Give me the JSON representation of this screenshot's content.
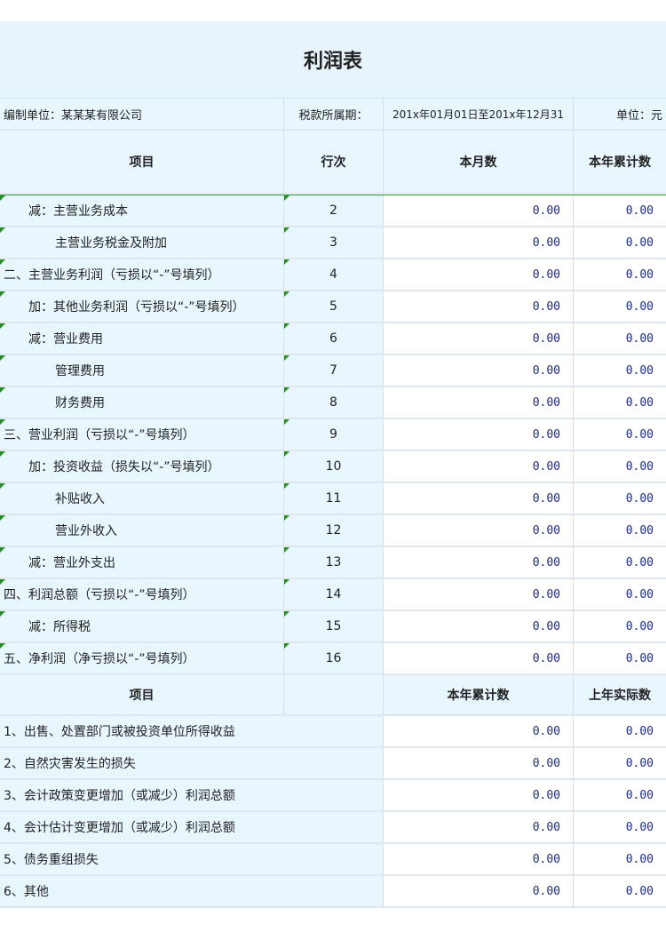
{
  "title": "利润表",
  "info": {
    "unit_label": "编制单位：某某某有限公司",
    "period_label": "税款所属期：",
    "period_value": "201x年01月01日至201x年12月31",
    "currency": "单位：元"
  },
  "header1": {
    "item": "项目",
    "line": "行次",
    "month": "本月数",
    "year": "本年累计数"
  },
  "rows": [
    {
      "item": "减：主营业务成本",
      "indent": 1,
      "line": "2",
      "month": "0.00",
      "year": "0.00"
    },
    {
      "item": "主营业务税金及附加",
      "indent": 2,
      "line": "3",
      "month": "0.00",
      "year": "0.00"
    },
    {
      "item": "二、主营业务利润（亏损以“-”号填列）",
      "indent": 0,
      "line": "4",
      "month": "0.00",
      "year": "0.00"
    },
    {
      "item": "加：其他业务利润（亏损以“-”号填列）",
      "indent": 1,
      "line": "5",
      "month": "0.00",
      "year": "0.00"
    },
    {
      "item": "减：营业费用",
      "indent": 1,
      "line": "6",
      "month": "0.00",
      "year": "0.00"
    },
    {
      "item": "管理费用",
      "indent": 2,
      "line": "7",
      "month": "0.00",
      "year": "0.00"
    },
    {
      "item": "财务费用",
      "indent": 2,
      "line": "8",
      "month": "0.00",
      "year": "0.00"
    },
    {
      "item": "三、营业利润（亏损以“-”号填列）",
      "indent": 0,
      "line": "9",
      "month": "0.00",
      "year": "0.00"
    },
    {
      "item": "加：投资收益（损失以“-”号填列）",
      "indent": 1,
      "line": "10",
      "month": "0.00",
      "year": "0.00"
    },
    {
      "item": "补贴收入",
      "indent": 2,
      "line": "11",
      "month": "0.00",
      "year": "0.00"
    },
    {
      "item": "营业外收入",
      "indent": 2,
      "line": "12",
      "month": "0.00",
      "year": "0.00"
    },
    {
      "item": "减：营业外支出",
      "indent": 1,
      "line": "13",
      "month": "0.00",
      "year": "0.00"
    },
    {
      "item": "四、利润总额（亏损以“-”号填列）",
      "indent": 0,
      "line": "14",
      "month": "0.00",
      "year": "0.00"
    },
    {
      "item": "减：所得税",
      "indent": 1,
      "line": "15",
      "month": "0.00",
      "year": "0.00"
    },
    {
      "item": "五、净利润（净亏损以“-”号填列）",
      "indent": 0,
      "line": "16",
      "month": "0.00",
      "year": "0.00"
    }
  ],
  "header2": {
    "item": "项目",
    "year": "本年累计数",
    "prev": "上年实际数"
  },
  "rows2": [
    {
      "item": "1、出售、处置部门或被投资单位所得收益",
      "year": "0.00",
      "prev": "0.00"
    },
    {
      "item": "2、自然灾害发生的损失",
      "year": "0.00",
      "prev": "0.00"
    },
    {
      "item": "3、会计政策变更增加（或减少）利润总额",
      "year": "0.00",
      "prev": "0.00"
    },
    {
      "item": "4、会计估计变更增加（或减少）利润总额",
      "year": "0.00",
      "prev": "0.00"
    },
    {
      "item": "5、债务重组损失",
      "year": "0.00",
      "prev": "0.00"
    },
    {
      "item": "6、其他",
      "year": "0.00",
      "prev": "0.00"
    }
  ],
  "colors": {
    "header_bg": "#e6f5fc",
    "value_text": "#1c2a8c",
    "marker": "#2a8a2a"
  }
}
